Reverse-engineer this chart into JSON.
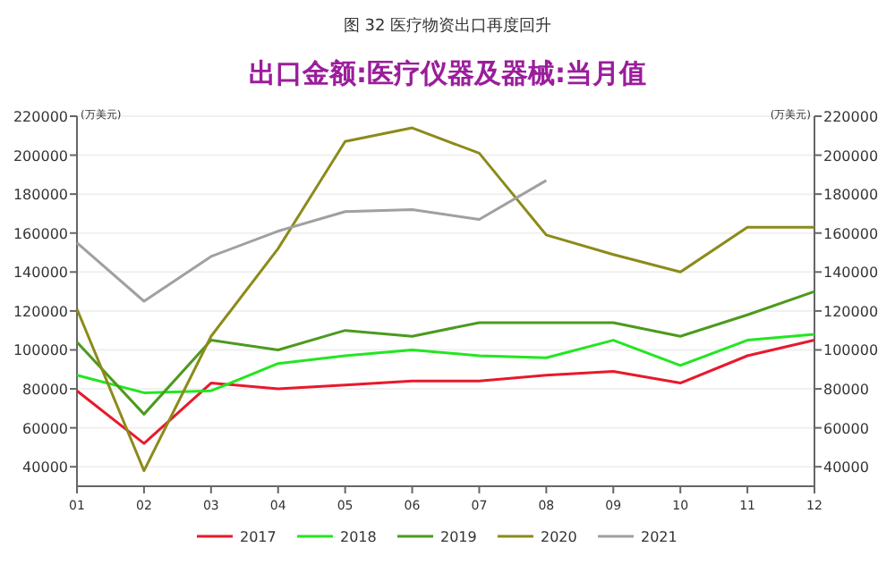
{
  "chart_data": {
    "type": "line",
    "title": "图 32 医疗物资出口再度回升",
    "subtitle": "出口金额:医疗仪器及器械:当月值",
    "ylabel": "(万美元)",
    "y2label": "(万美元)",
    "categories": [
      "01",
      "02",
      "03",
      "04",
      "05",
      "06",
      "07",
      "08",
      "09",
      "10",
      "11",
      "12"
    ],
    "series": [
      {
        "name": "2017",
        "color": "#e8192c",
        "values": [
          79000,
          52000,
          83000,
          80000,
          82000,
          84000,
          84000,
          87000,
          89000,
          83000,
          97000,
          105000
        ]
      },
      {
        "name": "2018",
        "color": "#22e622",
        "values": [
          87000,
          78000,
          79000,
          93000,
          97000,
          100000,
          97000,
          96000,
          105000,
          92000,
          105000,
          108000
        ]
      },
      {
        "name": "2019",
        "color": "#4c9a1e",
        "values": [
          104000,
          67000,
          105000,
          100000,
          110000,
          107000,
          114000,
          114000,
          114000,
          107000,
          118000,
          130000
        ]
      },
      {
        "name": "2020",
        "color": "#8b8b1a",
        "values": [
          121000,
          38000,
          107000,
          152000,
          207000,
          214000,
          201000,
          159000,
          149000,
          140000,
          163000,
          163000
        ]
      },
      {
        "name": "2021",
        "color": "#a0a0a0",
        "values": [
          155000,
          125000,
          148000,
          161000,
          171000,
          172000,
          167000,
          187000,
          null,
          null,
          null,
          null
        ]
      }
    ],
    "ylim": [
      30000,
      220000
    ],
    "yticks": [
      40000,
      60000,
      80000,
      100000,
      120000,
      140000,
      160000,
      180000,
      200000,
      220000
    ],
    "y2lim": [
      30000,
      220000
    ],
    "y2ticks": [
      40000,
      60000,
      80000,
      100000,
      120000,
      140000,
      160000,
      180000,
      200000,
      220000
    ],
    "grid": "y",
    "legend": "bottom",
    "marker": "none",
    "line_style": "solid"
  }
}
